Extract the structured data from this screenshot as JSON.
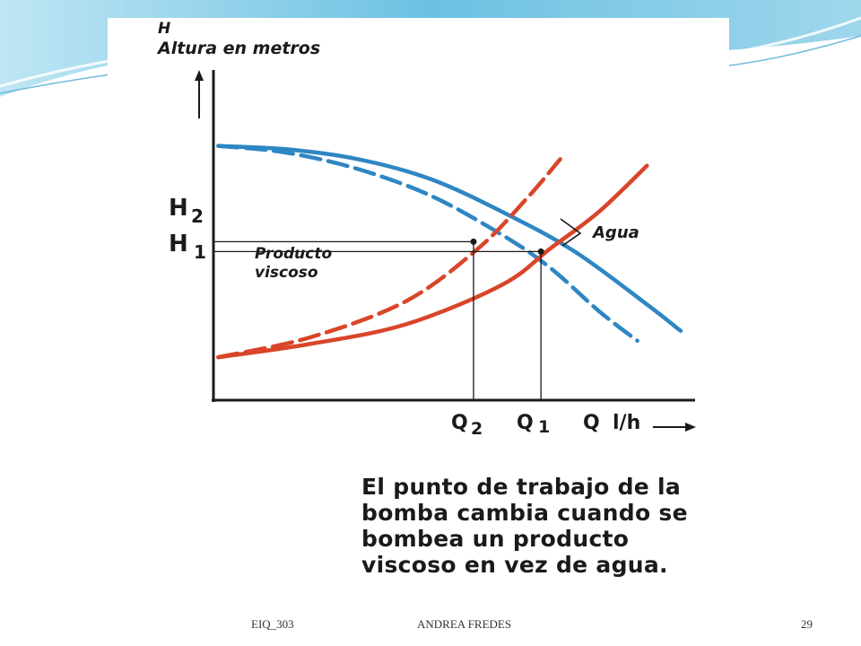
{
  "colors": {
    "accent_light": "#a9dcee",
    "accent": "#5bb6d9",
    "pump_curve": "#2f86c4",
    "system_curve": "#d9452a",
    "ink": "#1a1a1a"
  },
  "figure": {
    "ylabel_symbol": "H",
    "ylabel": "Altura en metros",
    "xlabel_symbol": "Q",
    "xlabel_unit": "l/h",
    "label_product": [
      "Producto",
      "viscoso"
    ],
    "label_water": "Agua",
    "h2": {
      "base": "H",
      "sub": "2"
    },
    "h1": {
      "base": "H",
      "sub": "1"
    },
    "q2": {
      "base": "Q",
      "sub": "2"
    },
    "q1": {
      "base": "Q",
      "sub": "1"
    }
  },
  "caption": [
    "El punto de trabajo de la",
    "bomba cambia cuando se",
    "bombea un producto",
    "viscoso en vez de agua."
  ],
  "footer": {
    "left": "EIQ_303",
    "center": "ANDREA FREDES",
    "page": "29"
  },
  "chart_data": {
    "type": "line",
    "title": "",
    "xlabel": "Q l/h",
    "ylabel": "H Altura en metros",
    "xlim": [
      0,
      100
    ],
    "ylim": [
      0,
      100
    ],
    "grid": false,
    "series": [
      {
        "name": "Agua",
        "role": "pump-curve",
        "style": "solid",
        "color": "#2f86c4",
        "x": [
          1,
          15,
          30,
          45,
          60,
          75,
          90,
          97
        ],
        "y": [
          77,
          76,
          73,
          67,
          57,
          45,
          29,
          21
        ]
      },
      {
        "name": "Producto viscoso",
        "role": "pump-curve",
        "style": "dashed",
        "color": "#2f86c4",
        "x": [
          1,
          15,
          30,
          45,
          60,
          70,
          80,
          88
        ],
        "y": [
          77,
          75,
          70,
          62,
          50,
          40,
          27,
          18
        ]
      },
      {
        "name": "Agua",
        "role": "system-curve",
        "style": "solid",
        "color": "#d9452a",
        "x": [
          1,
          20,
          40,
          60,
          70,
          80,
          90
        ],
        "y": [
          13,
          17,
          23,
          35,
          46,
          57,
          71
        ]
      },
      {
        "name": "Producto viscoso",
        "role": "system-curve",
        "style": "dashed",
        "color": "#d9452a",
        "x": [
          1,
          20,
          40,
          55,
          65,
          72
        ],
        "y": [
          13,
          19,
          30,
          46,
          61,
          73
        ]
      }
    ],
    "operating_points": [
      {
        "label": "H2 / Q2",
        "x": 54,
        "y": 48
      },
      {
        "label": "H1 / Q1",
        "x": 68,
        "y": 45
      }
    ]
  }
}
